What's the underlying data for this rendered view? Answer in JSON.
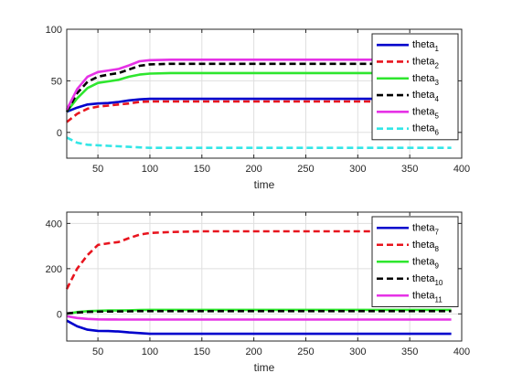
{
  "chart_data": [
    {
      "type": "line",
      "xlabel": "time",
      "xlim": [
        20,
        400
      ],
      "ylim": [
        -25,
        100
      ],
      "xticks": [
        50,
        100,
        150,
        200,
        250,
        300,
        350,
        400
      ],
      "yticks": [
        0,
        50,
        100
      ],
      "grid": true,
      "legend_position": "top-right",
      "x": [
        20,
        30,
        40,
        50,
        60,
        70,
        80,
        90,
        100,
        120,
        150,
        200,
        250,
        300,
        350,
        390
      ],
      "series": [
        {
          "name": "theta",
          "sub": "1",
          "color": "#0000cc",
          "dash": "solid",
          "values": [
            20,
            24,
            27,
            28,
            28.5,
            29.5,
            31,
            32,
            32.5,
            32.5,
            32.5,
            32.5,
            32.5,
            32.5,
            32.5,
            32.5
          ]
        },
        {
          "name": "theta",
          "sub": "2",
          "color": "#e8141e",
          "dash": "dashed",
          "values": [
            10,
            18,
            23,
            25,
            26,
            27,
            28,
            29.5,
            30,
            30,
            30,
            30,
            30,
            30,
            30,
            30
          ]
        },
        {
          "name": "theta",
          "sub": "3",
          "color": "#2ee62e",
          "dash": "solid",
          "values": [
            20,
            33,
            43,
            48,
            49.5,
            51,
            54,
            56,
            57,
            57.5,
            57.5,
            57.5,
            57.5,
            57.5,
            57.5,
            57.5
          ]
        },
        {
          "name": "theta",
          "sub": "4",
          "color": "#000000",
          "dash": "dashed",
          "values": [
            20,
            38,
            49,
            54,
            56,
            57.5,
            61,
            64.5,
            66,
            66.5,
            66.5,
            66.5,
            66.5,
            66.5,
            66.5,
            66.5
          ]
        },
        {
          "name": "theta",
          "sub": "5",
          "color": "#e632e6",
          "dash": "solid",
          "values": [
            22,
            42,
            54,
            58.5,
            60,
            61.5,
            65,
            69,
            70,
            70.5,
            70.5,
            70.5,
            70.5,
            70.5,
            70.5,
            70.5
          ]
        },
        {
          "name": "theta",
          "sub": "6",
          "color": "#32e6e6",
          "dash": "dashed",
          "values": [
            -5,
            -10,
            -12,
            -12.5,
            -13,
            -13.5,
            -14,
            -14.5,
            -15,
            -15,
            -15,
            -15,
            -15,
            -15,
            -15,
            -15
          ]
        }
      ]
    },
    {
      "type": "line",
      "xlabel": "time",
      "xlim": [
        20,
        400
      ],
      "ylim": [
        -120,
        450
      ],
      "xticks": [
        50,
        100,
        150,
        200,
        250,
        300,
        350,
        400
      ],
      "yticks": [
        0,
        200,
        400
      ],
      "grid": true,
      "legend_position": "top-right",
      "x": [
        20,
        30,
        40,
        50,
        60,
        70,
        80,
        90,
        100,
        120,
        150,
        200,
        250,
        300,
        350,
        390
      ],
      "series": [
        {
          "name": "theta",
          "sub": "7",
          "color": "#0000cc",
          "dash": "solid",
          "values": [
            -30,
            -55,
            -70,
            -75,
            -76,
            -78,
            -82,
            -85,
            -88,
            -88,
            -88,
            -88,
            -88,
            -88,
            -88,
            -88
          ]
        },
        {
          "name": "theta",
          "sub": "8",
          "color": "#e8141e",
          "dash": "dashed",
          "values": [
            110,
            200,
            260,
            305,
            312,
            318,
            335,
            350,
            358,
            362,
            365,
            365,
            365,
            365,
            365,
            365
          ]
        },
        {
          "name": "theta",
          "sub": "9",
          "color": "#2ee62e",
          "dash": "solid",
          "values": [
            0,
            8,
            12,
            14,
            15,
            15.5,
            16,
            17,
            18,
            18,
            18,
            18,
            18,
            18,
            18,
            18
          ]
        },
        {
          "name": "theta",
          "sub": "10",
          "color": "#000000",
          "dash": "dashed",
          "values": [
            2,
            6,
            9,
            10,
            10.5,
            11,
            11.5,
            12,
            12,
            12,
            12,
            12,
            12,
            12,
            12,
            12
          ]
        },
        {
          "name": "theta",
          "sub": "11",
          "color": "#e632e6",
          "dash": "solid",
          "values": [
            -10,
            -18,
            -22,
            -24,
            -24.5,
            -25,
            -25,
            -25,
            -25,
            -25,
            -25,
            -25,
            -25,
            -25,
            -25,
            -25
          ]
        }
      ]
    }
  ]
}
